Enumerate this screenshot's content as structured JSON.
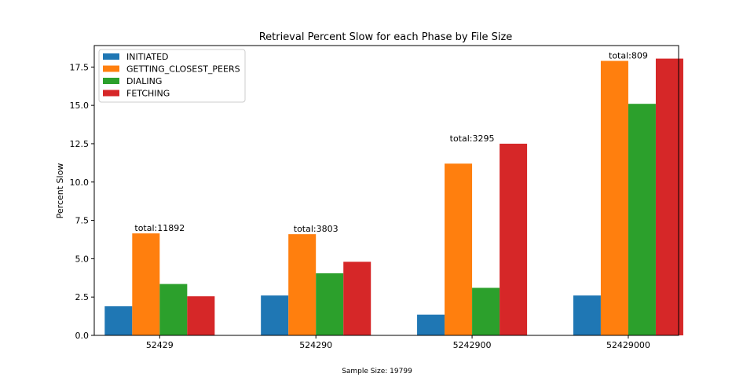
{
  "chart_data": {
    "type": "bar",
    "title": "Retrieval Percent Slow for each Phase by File Size",
    "xlabel": "",
    "ylabel": "Percent Slow",
    "caption": "Sample Size: 19799",
    "categories": [
      "52429",
      "524290",
      "5242900",
      "52429000"
    ],
    "series": [
      {
        "name": "INITIATED",
        "color": "#1f77b4",
        "values": [
          1.9,
          2.6,
          1.35,
          2.6
        ]
      },
      {
        "name": "GETTING_CLOSEST_PEERS",
        "color": "#ff7f0e",
        "values": [
          6.65,
          6.6,
          11.2,
          17.9
        ]
      },
      {
        "name": "DIALING",
        "color": "#2ca02c",
        "values": [
          3.35,
          4.05,
          3.1,
          15.1
        ]
      },
      {
        "name": "FETCHING",
        "color": "#d62728",
        "values": [
          2.55,
          4.8,
          12.5,
          18.05
        ]
      }
    ],
    "totals": [
      "total:11892",
      "total:3803",
      "total:3295",
      "total:809"
    ],
    "total_values": [
      6.65,
      6.6,
      12.5,
      17.9
    ],
    "ylim": [
      0,
      18.9
    ],
    "yticks": [
      "0.0",
      "2.5",
      "5.0",
      "7.5",
      "10.0",
      "12.5",
      "15.0",
      "17.5"
    ],
    "ytick_values": [
      0,
      2.5,
      5,
      7.5,
      10,
      12.5,
      15,
      17.5
    ],
    "legend": "top-left",
    "grid": false
  }
}
